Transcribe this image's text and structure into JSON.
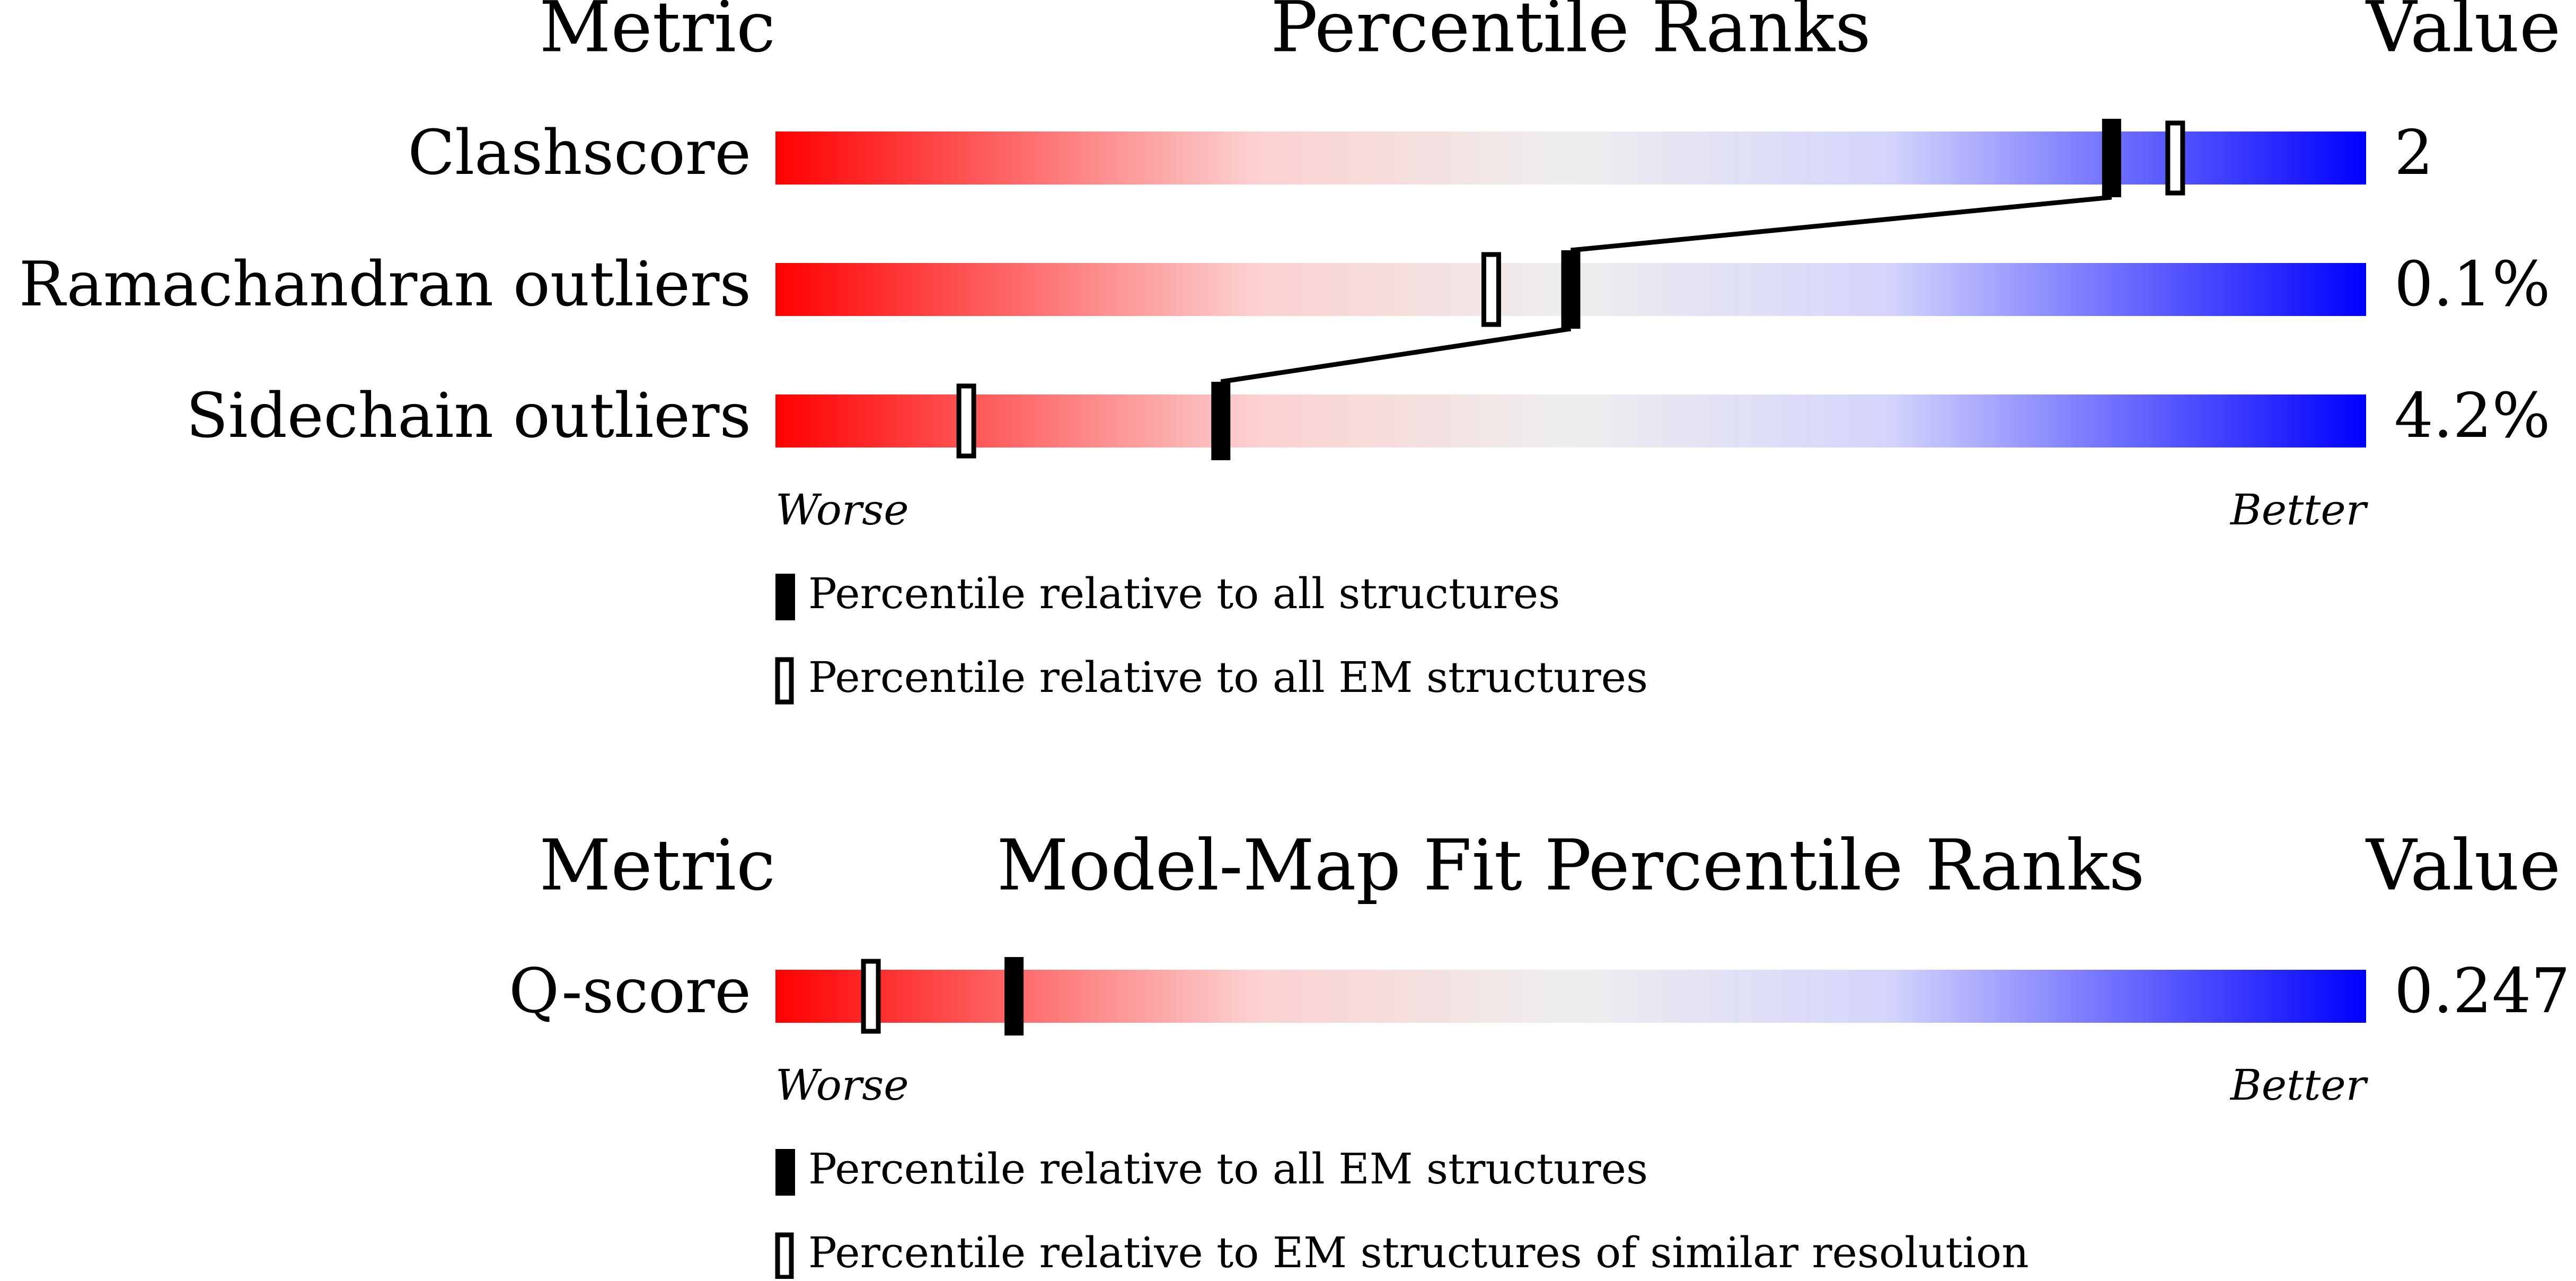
{
  "panels": [
    {
      "header": {
        "metric": "Metric",
        "title": "Percentile Ranks",
        "value": "Value"
      },
      "xlim": [
        0,
        100
      ],
      "rows": [
        {
          "metric": "Clashscore",
          "value": "2",
          "percentile_all": 84,
          "percentile_em": 88
        },
        {
          "metric": "Ramachandran outliers",
          "value": "0.1%",
          "percentile_all": 50,
          "percentile_em": 45
        },
        {
          "metric": "Sidechain outliers",
          "value": "4.2%",
          "percentile_all": 28,
          "percentile_em": 12
        }
      ],
      "scale": {
        "worse": "Worse",
        "better": "Better"
      },
      "legend": [
        "Percentile relative to all structures",
        "Percentile relative to all EM structures"
      ]
    },
    {
      "header": {
        "metric": "Metric",
        "title": "Model-Map Fit Percentile Ranks",
        "value": "Value"
      },
      "xlim": [
        0,
        100
      ],
      "rows": [
        {
          "metric": "Q-score",
          "value": "0.247",
          "percentile_all": 15,
          "percentile_em": 6
        }
      ],
      "scale": {
        "worse": "Worse",
        "better": "Better"
      },
      "legend": [
        "Percentile relative to all EM structures",
        "Percentile relative to EM structures of similar resolution"
      ]
    }
  ]
}
